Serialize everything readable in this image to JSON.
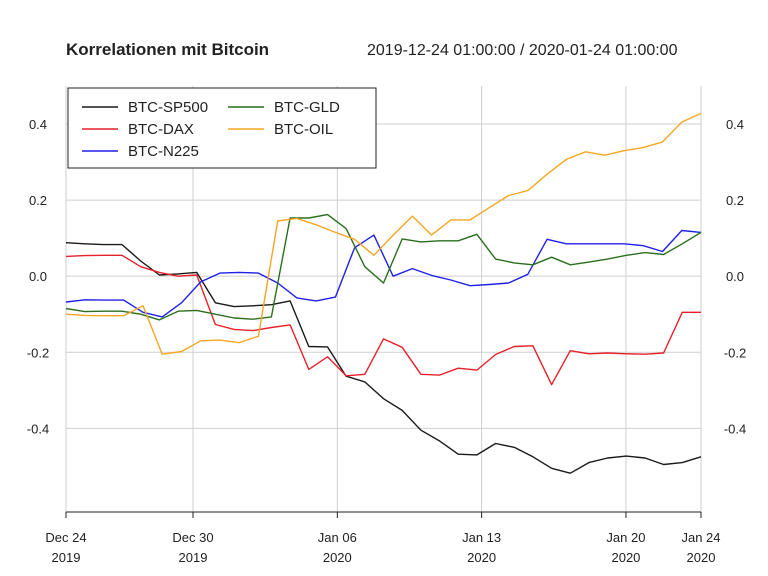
{
  "header": {
    "title": "Korrelationen mit Bitcoin",
    "date_range": "2019-12-24 01:00:00 / 2020-01-24 01:00:00"
  },
  "chart_data": {
    "type": "line",
    "title": "Korrelationen mit Bitcoin",
    "ylim": [
      -0.62,
      0.5
    ],
    "grid": true,
    "legend_position": "top-left",
    "y_ticks": [
      -0.4,
      -0.2,
      0.0,
      0.2,
      0.4
    ],
    "y_tick_labels": [
      "-0.4",
      "-0.2",
      "0.0",
      "0.2",
      "0.4"
    ],
    "x_ticks": [
      {
        "index": 0,
        "line1": "Dec 24",
        "line2": "2019"
      },
      {
        "index": 8.8,
        "line1": "Dec 30",
        "line2": "2019"
      },
      {
        "index": 18.8,
        "line1": "Jan 06",
        "line2": "2020"
      },
      {
        "index": 28.8,
        "line1": "Jan 13",
        "line2": "2020"
      },
      {
        "index": 38.8,
        "line1": "Jan 20",
        "line2": "2020"
      },
      {
        "index": 44,
        "line1": "Jan 24",
        "line2": "2020"
      }
    ],
    "x_range": [
      0,
      44
    ],
    "x": [
      0,
      2,
      3,
      4,
      5,
      6,
      7,
      8,
      9,
      10,
      11,
      12,
      13,
      14,
      15,
      16,
      17,
      18,
      19,
      20,
      21,
      22,
      23,
      24,
      25,
      26,
      27,
      28,
      29,
      30,
      31,
      32,
      33,
      34,
      35,
      36,
      37,
      38,
      39,
      40,
      41,
      42,
      43,
      44
    ],
    "series": [
      {
        "name": "BTC-SP500",
        "color": "#1a1a1a",
        "values": [
          0.088,
          0.085,
          0.083,
          0.083,
          0.04,
          0.003,
          0.006,
          0.01,
          -0.07,
          -0.08,
          -0.078,
          -0.075,
          -0.065,
          -0.185,
          -0.186,
          -0.263,
          -0.278,
          -0.322,
          -0.353,
          -0.405,
          -0.433,
          -0.468,
          -0.47,
          -0.44,
          -0.45,
          -0.475,
          -0.505,
          -0.518,
          -0.49,
          -0.478,
          -0.473,
          -0.478,
          -0.495,
          -0.49,
          -0.475,
          null,
          null,
          null,
          null,
          null,
          null,
          null,
          null,
          null
        ]
      },
      {
        "name": "BTC-DAX",
        "color": "#e8202a",
        "values": [
          0.052,
          0.054,
          0.055,
          0.055,
          0.025,
          0.01,
          0.0,
          0.003,
          -0.127,
          -0.14,
          -0.143,
          -0.135,
          -0.128,
          -0.245,
          -0.212,
          -0.262,
          -0.258,
          -0.165,
          -0.187,
          -0.258,
          -0.26,
          -0.242,
          -0.247,
          -0.206,
          -0.185,
          -0.183,
          -0.285,
          -0.196,
          -0.204,
          -0.202,
          -0.204,
          -0.205,
          -0.202,
          -0.095,
          -0.095,
          null,
          null,
          null,
          null,
          null,
          null,
          null,
          null,
          null
        ]
      },
      {
        "name": "BTC-N225",
        "color": "#2020e8",
        "values": [
          -0.068,
          -0.062,
          -0.063,
          -0.063,
          -0.095,
          -0.107,
          -0.07,
          -0.015,
          0.008,
          0.01,
          0.008,
          -0.018,
          -0.057,
          -0.065,
          -0.055,
          0.075,
          0.108,
          0.0,
          0.02,
          0.002,
          -0.01,
          -0.025,
          -0.022,
          -0.018,
          0.005,
          0.097,
          0.085,
          0.085,
          0.085,
          0.085,
          0.08,
          0.065,
          0.12,
          0.115,
          null,
          null,
          null,
          null,
          null,
          null,
          null,
          null,
          null,
          null
        ]
      },
      {
        "name": "BTC-GLD",
        "color": "#2a6e1e",
        "values": [
          -0.085,
          -0.093,
          -0.092,
          -0.092,
          -0.1,
          -0.115,
          -0.092,
          -0.09,
          -0.1,
          -0.11,
          -0.113,
          -0.107,
          0.153,
          0.153,
          0.162,
          0.125,
          0.025,
          -0.018,
          0.098,
          0.09,
          0.093,
          0.093,
          0.11,
          0.045,
          0.035,
          0.03,
          0.05,
          0.03,
          0.037,
          0.045,
          0.055,
          0.062,
          0.057,
          0.085,
          0.115,
          null,
          null,
          null,
          null,
          null,
          null,
          null,
          null,
          null
        ]
      },
      {
        "name": "BTC-OIL",
        "color": "#f5a623",
        "values": [
          -0.1,
          -0.103,
          -0.104,
          -0.104,
          -0.078,
          -0.205,
          -0.198,
          -0.17,
          -0.168,
          -0.175,
          -0.158,
          0.145,
          0.152,
          0.135,
          0.115,
          0.097,
          0.055,
          0.108,
          0.158,
          0.108,
          0.148,
          0.148,
          0.18,
          0.212,
          0.225,
          0.268,
          0.307,
          0.327,
          0.318,
          0.33,
          0.338,
          0.353,
          0.405,
          0.428,
          null,
          null,
          null,
          null,
          null,
          null,
          null,
          null,
          null,
          null
        ]
      }
    ]
  }
}
